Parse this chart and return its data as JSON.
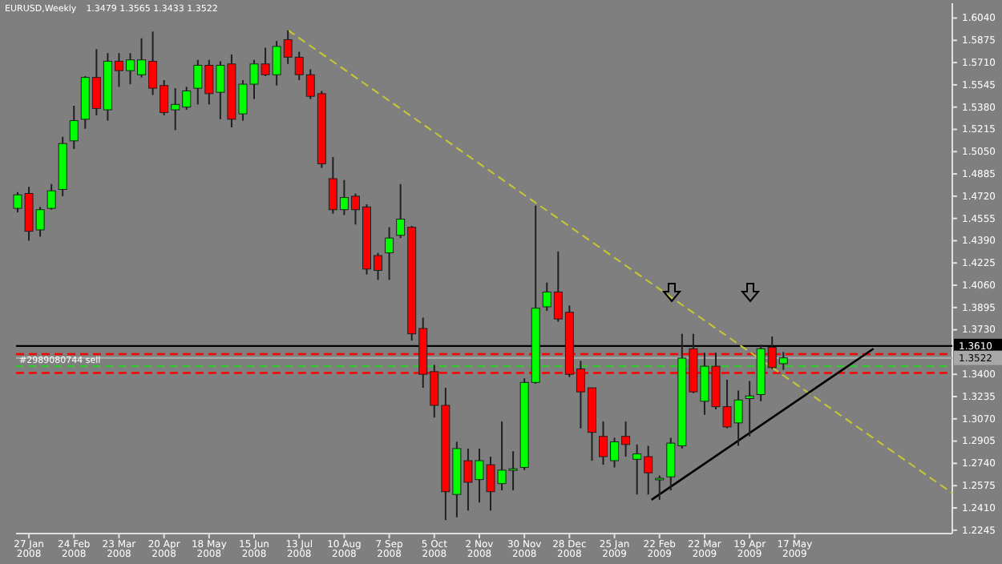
{
  "chart_data": {
    "type": "candlestick",
    "title": "EURUSD,Weekly",
    "subtitle": "1.3479 1.3565 1.3433 1.3522",
    "x": [
      "2008-01-20",
      "2008-01-27",
      "2008-02-03",
      "2008-02-10",
      "2008-02-17",
      "2008-02-24",
      "2008-03-02",
      "2008-03-09",
      "2008-03-16",
      "2008-03-23",
      "2008-03-30",
      "2008-04-06",
      "2008-04-13",
      "2008-04-20",
      "2008-04-27",
      "2008-05-04",
      "2008-05-11",
      "2008-05-18",
      "2008-05-25",
      "2008-06-01",
      "2008-06-08",
      "2008-06-15",
      "2008-06-22",
      "2008-06-29",
      "2008-07-06",
      "2008-07-13",
      "2008-07-20",
      "2008-07-27",
      "2008-08-03",
      "2008-08-10",
      "2008-08-17",
      "2008-08-24",
      "2008-08-31",
      "2008-09-07",
      "2008-09-14",
      "2008-09-21",
      "2008-09-28",
      "2008-10-05",
      "2008-10-12",
      "2008-10-19",
      "2008-10-26",
      "2008-11-02",
      "2008-11-09",
      "2008-11-16",
      "2008-11-23",
      "2008-11-30",
      "2008-12-07",
      "2008-12-14",
      "2008-12-21",
      "2008-12-28",
      "2009-01-04",
      "2009-01-11",
      "2009-01-18",
      "2009-01-25",
      "2009-02-01",
      "2009-02-08",
      "2009-02-15",
      "2009-02-22",
      "2009-03-01",
      "2009-03-08",
      "2009-03-15",
      "2009-03-22",
      "2009-03-29",
      "2009-04-05",
      "2009-04-12",
      "2009-04-19",
      "2009-04-26",
      "2009-05-03",
      "2009-05-10"
    ],
    "ohlc": [
      [
        1.463,
        1.475,
        1.46,
        1.473
      ],
      [
        1.474,
        1.479,
        1.439,
        1.446
      ],
      [
        1.447,
        1.464,
        1.442,
        1.462
      ],
      [
        1.463,
        1.481,
        1.462,
        1.476
      ],
      [
        1.477,
        1.516,
        1.472,
        1.511
      ],
      [
        1.513,
        1.539,
        1.507,
        1.528
      ],
      [
        1.529,
        1.561,
        1.522,
        1.56
      ],
      [
        1.56,
        1.581,
        1.532,
        1.537
      ],
      [
        1.536,
        1.578,
        1.528,
        1.572
      ],
      [
        1.572,
        1.578,
        1.553,
        1.565
      ],
      [
        1.565,
        1.578,
        1.555,
        1.573
      ],
      [
        1.562,
        1.589,
        1.56,
        1.573
      ],
      [
        1.572,
        1.594,
        1.547,
        1.552
      ],
      [
        1.554,
        1.558,
        1.532,
        1.534
      ],
      [
        1.536,
        1.552,
        1.521,
        1.54
      ],
      [
        1.538,
        1.553,
        1.536,
        1.55
      ],
      [
        1.552,
        1.573,
        1.54,
        1.569
      ],
      [
        1.569,
        1.573,
        1.54,
        1.548
      ],
      [
        1.549,
        1.572,
        1.529,
        1.569
      ],
      [
        1.57,
        1.577,
        1.523,
        1.529
      ],
      [
        1.533,
        1.558,
        1.528,
        1.555
      ],
      [
        1.555,
        1.573,
        1.544,
        1.57
      ],
      [
        1.57,
        1.582,
        1.561,
        1.562
      ],
      [
        1.562,
        1.587,
        1.554,
        1.583
      ],
      [
        1.588,
        1.595,
        1.57,
        1.575
      ],
      [
        1.575,
        1.579,
        1.558,
        1.562
      ],
      [
        1.562,
        1.566,
        1.544,
        1.546
      ],
      [
        1.548,
        1.55,
        1.493,
        1.496
      ],
      [
        1.485,
        1.501,
        1.459,
        1.462
      ],
      [
        1.462,
        1.484,
        1.458,
        1.471
      ],
      [
        1.472,
        1.474,
        1.451,
        1.462
      ],
      [
        1.464,
        1.466,
        1.414,
        1.418
      ],
      [
        1.428,
        1.43,
        1.41,
        1.417
      ],
      [
        1.43,
        1.449,
        1.41,
        1.441
      ],
      [
        1.443,
        1.481,
        1.441,
        1.455
      ],
      [
        1.449,
        1.45,
        1.365,
        1.37
      ],
      [
        1.374,
        1.382,
        1.33,
        1.34
      ],
      [
        1.342,
        1.347,
        1.308,
        1.317
      ],
      [
        1.317,
        1.33,
        1.232,
        1.253
      ],
      [
        1.251,
        1.29,
        1.234,
        1.285
      ],
      [
        1.276,
        1.285,
        1.239,
        1.26
      ],
      [
        1.262,
        1.285,
        1.245,
        1.276
      ],
      [
        1.273,
        1.279,
        1.239,
        1.253
      ],
      [
        1.259,
        1.305,
        1.254,
        1.269
      ],
      [
        1.269,
        1.283,
        1.254,
        1.27
      ],
      [
        1.271,
        1.337,
        1.269,
        1.334
      ],
      [
        1.334,
        1.465,
        1.333,
        1.389
      ],
      [
        1.39,
        1.408,
        1.387,
        1.401
      ],
      [
        1.401,
        1.431,
        1.379,
        1.381
      ],
      [
        1.386,
        1.391,
        1.338,
        1.34
      ],
      [
        1.344,
        1.35,
        1.3,
        1.327
      ],
      [
        1.33,
        1.33,
        1.276,
        1.297
      ],
      [
        1.294,
        1.305,
        1.273,
        1.279
      ],
      [
        1.276,
        1.293,
        1.271,
        1.29
      ],
      [
        1.294,
        1.305,
        1.279,
        1.288
      ],
      [
        1.277,
        1.288,
        1.251,
        1.281
      ],
      [
        1.279,
        1.287,
        1.251,
        1.267
      ],
      [
        1.262,
        1.265,
        1.247,
        1.263
      ],
      [
        1.264,
        1.293,
        1.254,
        1.289
      ],
      [
        1.287,
        1.37,
        1.285,
        1.352
      ],
      [
        1.359,
        1.37,
        1.326,
        1.327
      ],
      [
        1.32,
        1.356,
        1.31,
        1.346
      ],
      [
        1.346,
        1.356,
        1.314,
        1.316
      ],
      [
        1.316,
        1.336,
        1.3,
        1.301
      ],
      [
        1.304,
        1.328,
        1.287,
        1.321
      ],
      [
        1.322,
        1.335,
        1.294,
        1.324
      ],
      [
        1.325,
        1.362,
        1.32,
        1.359
      ],
      [
        1.36,
        1.368,
        1.344,
        1.345
      ],
      [
        1.3479,
        1.3565,
        1.3433,
        1.3522
      ]
    ],
    "colors": [
      "#00ff00",
      "#ff0000",
      "#00ff00",
      "#00ff00",
      "#00ff00",
      "#00ff00",
      "#00ff00",
      "#ff0000",
      "#00ff00",
      "#ff0000",
      "#00ff00",
      "#00ff00",
      "#ff0000",
      "#ff0000",
      "#00ff00",
      "#00ff00",
      "#00ff00",
      "#ff0000",
      "#00ff00",
      "#ff0000",
      "#00ff00",
      "#00ff00",
      "#ff0000",
      "#00ff00",
      "#ff0000",
      "#ff0000",
      "#ff0000",
      "#ff0000",
      "#ff0000",
      "#00ff00",
      "#ff0000",
      "#ff0000",
      "#ff0000",
      "#00ff00",
      "#00ff00",
      "#ff0000",
      "#ff0000",
      "#ff0000",
      "#ff0000",
      "#00ff00",
      "#ff0000",
      "#00ff00",
      "#ff0000",
      "#00ff00",
      "#00ff00",
      "#00ff00",
      "#00ff00",
      "#00ff00",
      "#ff0000",
      "#ff0000",
      "#ff0000",
      "#ff0000",
      "#ff0000",
      "#00ff00",
      "#ff0000",
      "#00ff00",
      "#ff0000",
      "#00ff00",
      "#00ff00",
      "#00ff00",
      "#ff0000",
      "#00ff00",
      "#ff0000",
      "#ff0000",
      "#00ff00",
      "#00ff00",
      "#00ff00",
      "#ff0000",
      "#00ff00"
    ],
    "series": [
      {
        "type": "line",
        "color": "#c8c832",
        "line_style": "dashed",
        "x": [
          "2008-07-06",
          "2009-08-23"
        ],
        "values": [
          1.595,
          1.252
        ]
      },
      {
        "type": "line",
        "color": "#000000",
        "line_style": "solid",
        "x": [
          "2009-02-17",
          "2009-07-05"
        ],
        "values": [
          1.247,
          1.359
        ]
      }
    ],
    "ref_lines": [
      {
        "axis": "y",
        "value": 1.361,
        "label": "1.3610",
        "color": "#000000",
        "line_style": "solid"
      },
      {
        "axis": "y",
        "value": 1.3522,
        "label": "1.3522",
        "color": "#a8a8a8",
        "line_style": "solid"
      },
      {
        "axis": "y",
        "value": 1.355,
        "color": "#ff0000",
        "line_style": "dashed"
      },
      {
        "axis": "y",
        "value": 1.346,
        "label": "#2989080744 sell",
        "color": "#32c832",
        "line_style": "dashed"
      },
      {
        "axis": "y",
        "value": 1.341,
        "color": "#ff0000",
        "line_style": "dashed"
      }
    ],
    "xlim": [
      "2008-01-19",
      "2009-08-23"
    ],
    "xticks": [
      {
        "value": "2008-01-27",
        "label": "27 Jan 2008"
      },
      {
        "value": "2008-02-24",
        "label": "24 Feb 2008"
      },
      {
        "value": "2008-03-23",
        "label": "23 Mar 2008"
      },
      {
        "value": "2008-04-20",
        "label": "20 Apr 2008"
      },
      {
        "value": "2008-05-18",
        "label": "18 May 2008"
      },
      {
        "value": "2008-06-15",
        "label": "15 Jun 2008"
      },
      {
        "value": "2008-07-13",
        "label": "13 Jul 2008"
      },
      {
        "value": "2008-08-10",
        "label": "10 Aug 2008"
      },
      {
        "value": "2008-09-07",
        "label": "7 Sep 2008"
      },
      {
        "value": "2008-10-05",
        "label": "5 Oct 2008"
      },
      {
        "value": "2008-11-02",
        "label": "2 Nov 2008"
      },
      {
        "value": "2008-11-30",
        "label": "30 Nov 2008"
      },
      {
        "value": "2008-12-28",
        "label": "28 Dec 2008"
      },
      {
        "value": "2009-01-25",
        "label": "25 Jan 2009"
      },
      {
        "value": "2009-02-22",
        "label": "22 Feb 2009"
      },
      {
        "value": "2009-03-22",
        "label": "22 Mar 2009"
      },
      {
        "value": "2009-04-19",
        "label": "19 Apr 2009"
      },
      {
        "value": "2009-05-17",
        "label": "17 May 2009"
      }
    ],
    "ylim": [
      1.222,
      1.615
    ],
    "yticks": [
      {
        "value": 1.604,
        "label": "1.6040"
      },
      {
        "value": 1.5875,
        "label": "1.5875"
      },
      {
        "value": 1.571,
        "label": "1.5710"
      },
      {
        "value": 1.5545,
        "label": "1.5545"
      },
      {
        "value": 1.538,
        "label": "1.5380"
      },
      {
        "value": 1.5215,
        "label": "1.5215"
      },
      {
        "value": 1.505,
        "label": "1.5050"
      },
      {
        "value": 1.4885,
        "label": "1.4885"
      },
      {
        "value": 1.472,
        "label": "1.4720"
      },
      {
        "value": 1.4555,
        "label": "1.4555"
      },
      {
        "value": 1.439,
        "label": "1.4390"
      },
      {
        "value": 1.4225,
        "label": "1.4225"
      },
      {
        "value": 1.406,
        "label": "1.4060"
      },
      {
        "value": 1.3895,
        "label": "1.3895"
      },
      {
        "value": 1.373,
        "label": "1.3730"
      },
      {
        "value": 1.34,
        "label": "1.3400"
      },
      {
        "value": 1.3235,
        "label": "1.3235"
      },
      {
        "value": 1.307,
        "label": "1.3070"
      },
      {
        "value": 1.2905,
        "label": "1.2905"
      },
      {
        "value": 1.274,
        "label": "1.2740"
      },
      {
        "value": 1.2575,
        "label": "1.2575"
      },
      {
        "value": 1.241,
        "label": "1.2410"
      },
      {
        "value": 1.2245,
        "label": "1.2245"
      }
    ]
  }
}
